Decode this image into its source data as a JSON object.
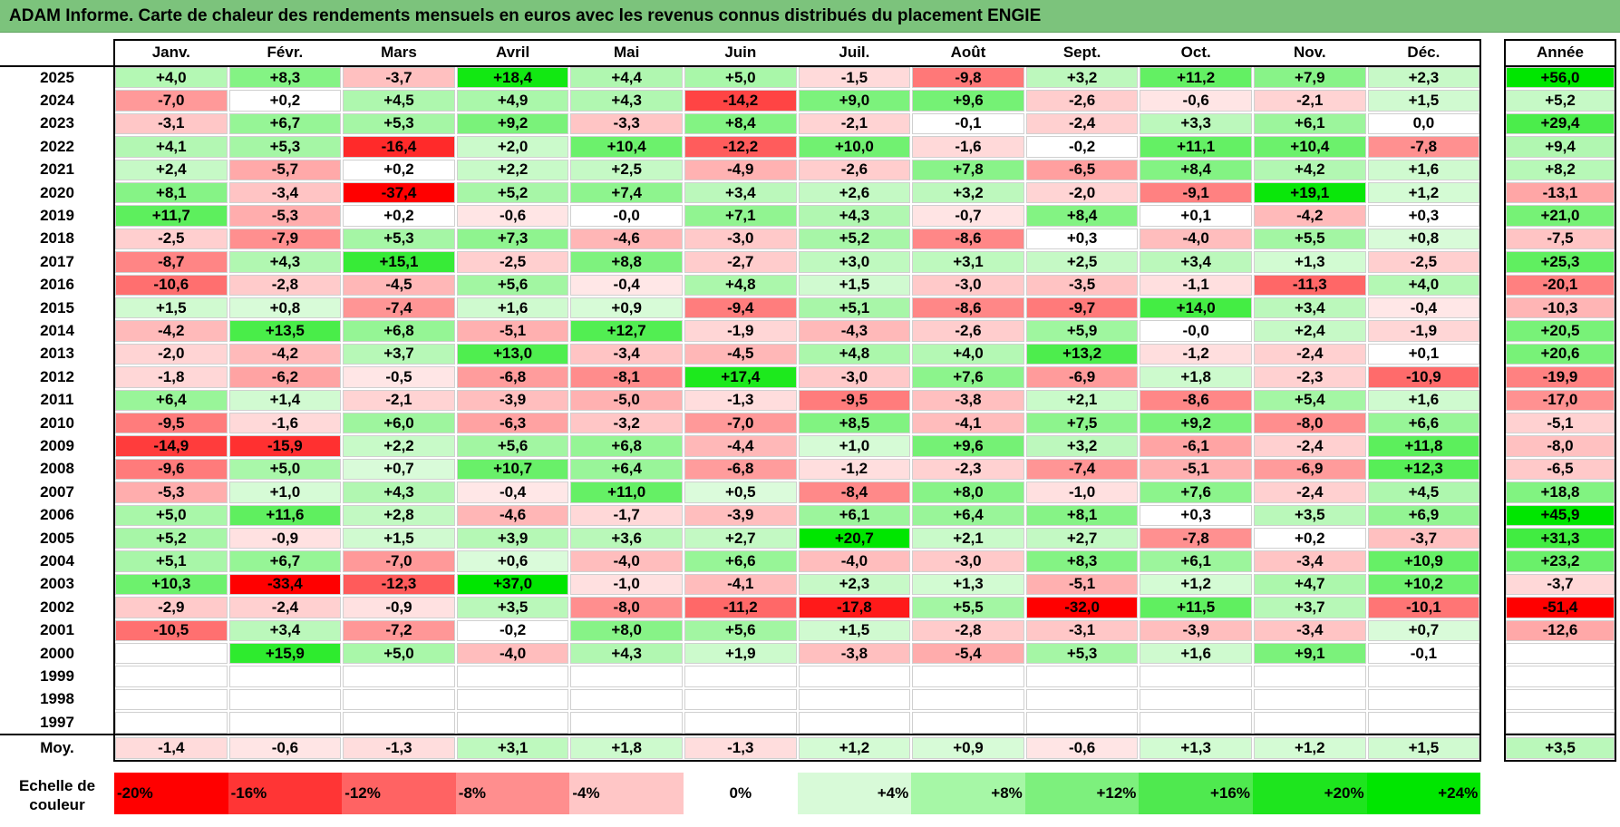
{
  "title": "ADAM Informe. Carte de chaleur des rendements mensuels en euros avec les revenus connus distribués du placement ENGIE",
  "colors": {
    "title_bg": "#7cc37c",
    "positive_max": "#00e600",
    "negative_max": "#ff0000",
    "zero": "#ffffff"
  },
  "chart_data": {
    "type": "heatmap",
    "title": "ADAM Informe. Carte de chaleur des rendements mensuels en euros avec les revenus connus distribués du placement ENGIE",
    "columns": [
      "Janv.",
      "Févr.",
      "Mars",
      "Avril",
      "Mai",
      "Juin",
      "Juil.",
      "Août",
      "Sept.",
      "Oct.",
      "Nov.",
      "Déc."
    ],
    "year_column_label": "Année",
    "rows": [
      {
        "year": "2025",
        "months": [
          "+4,0",
          "+8,3",
          "-3,7",
          "+18,4",
          "+4,4",
          "+5,0",
          "-1,5",
          "-9,8",
          "+3,2",
          "+11,2",
          "+7,9",
          "+2,3"
        ],
        "year_value": "+56,0"
      },
      {
        "year": "2024",
        "months": [
          "-7,0",
          "+0,2",
          "+4,5",
          "+4,9",
          "+4,3",
          "-14,2",
          "+9,0",
          "+9,6",
          "-2,6",
          "-0,6",
          "-2,1",
          "+1,5"
        ],
        "year_value": "+5,2"
      },
      {
        "year": "2023",
        "months": [
          "-3,1",
          "+6,7",
          "+5,3",
          "+9,2",
          "-3,3",
          "+8,4",
          "-2,1",
          "-0,1",
          "-2,4",
          "+3,3",
          "+6,1",
          "0,0"
        ],
        "year_value": "+29,4"
      },
      {
        "year": "2022",
        "months": [
          "+4,1",
          "+5,3",
          "-16,4",
          "+2,0",
          "+10,4",
          "-12,2",
          "+10,0",
          "-1,6",
          "-0,2",
          "+11,1",
          "+10,4",
          "-7,8"
        ],
        "year_value": "+9,4"
      },
      {
        "year": "2021",
        "months": [
          "+2,4",
          "-5,7",
          "+0,2",
          "+2,2",
          "+2,5",
          "-4,9",
          "-2,6",
          "+7,8",
          "-6,5",
          "+8,4",
          "+4,2",
          "+1,6"
        ],
        "year_value": "+8,2"
      },
      {
        "year": "2020",
        "months": [
          "+8,1",
          "-3,4",
          "-37,4",
          "+5,2",
          "+7,4",
          "+3,4",
          "+2,6",
          "+3,2",
          "-2,0",
          "-9,1",
          "+19,1",
          "+1,2"
        ],
        "year_value": "-13,1"
      },
      {
        "year": "2019",
        "months": [
          "+11,7",
          "-5,3",
          "+0,2",
          "-0,6",
          "-0,0",
          "+7,1",
          "+4,3",
          "-0,7",
          "+8,4",
          "+0,1",
          "-4,2",
          "+0,3"
        ],
        "year_value": "+21,0"
      },
      {
        "year": "2018",
        "months": [
          "-2,5",
          "-7,9",
          "+5,3",
          "+7,3",
          "-4,6",
          "-3,0",
          "+5,2",
          "-8,6",
          "+0,3",
          "-4,0",
          "+5,5",
          "+0,8"
        ],
        "year_value": "-7,5"
      },
      {
        "year": "2017",
        "months": [
          "-8,7",
          "+4,3",
          "+15,1",
          "-2,5",
          "+8,8",
          "-2,7",
          "+3,0",
          "+3,1",
          "+2,5",
          "+3,4",
          "+1,3",
          "-2,5"
        ],
        "year_value": "+25,3"
      },
      {
        "year": "2016",
        "months": [
          "-10,6",
          "-2,8",
          "-4,5",
          "+5,6",
          "-0,4",
          "+4,8",
          "+1,5",
          "-3,0",
          "-3,5",
          "-1,1",
          "-11,3",
          "+4,0"
        ],
        "year_value": "-20,1"
      },
      {
        "year": "2015",
        "months": [
          "+1,5",
          "+0,8",
          "-7,4",
          "+1,6",
          "+0,9",
          "-9,4",
          "+5,1",
          "-8,6",
          "-9,7",
          "+14,0",
          "+3,4",
          "-0,4"
        ],
        "year_value": "-10,3"
      },
      {
        "year": "2014",
        "months": [
          "-4,2",
          "+13,5",
          "+6,8",
          "-5,1",
          "+12,7",
          "-1,9",
          "-4,3",
          "-2,6",
          "+5,9",
          "-0,0",
          "+2,4",
          "-1,9"
        ],
        "year_value": "+20,5"
      },
      {
        "year": "2013",
        "months": [
          "-2,0",
          "-4,2",
          "+3,7",
          "+13,0",
          "-3,4",
          "-4,5",
          "+4,8",
          "+4,0",
          "+13,2",
          "-1,2",
          "-2,4",
          "+0,1"
        ],
        "year_value": "+20,6"
      },
      {
        "year": "2012",
        "months": [
          "-1,8",
          "-6,2",
          "-0,5",
          "-6,8",
          "-8,1",
          "+17,4",
          "-3,0",
          "+7,6",
          "-6,9",
          "+1,8",
          "-2,3",
          "-10,9"
        ],
        "year_value": "-19,9"
      },
      {
        "year": "2011",
        "months": [
          "+6,4",
          "+1,4",
          "-2,1",
          "-3,9",
          "-5,0",
          "-1,3",
          "-9,5",
          "-3,8",
          "+2,1",
          "-8,6",
          "+5,4",
          "+1,6"
        ],
        "year_value": "-17,0"
      },
      {
        "year": "2010",
        "months": [
          "-9,5",
          "-1,6",
          "+6,0",
          "-6,3",
          "-3,2",
          "-7,0",
          "+8,5",
          "-4,1",
          "+7,5",
          "+9,2",
          "-8,0",
          "+6,6"
        ],
        "year_value": "-5,1"
      },
      {
        "year": "2009",
        "months": [
          "-14,9",
          "-15,9",
          "+2,2",
          "+5,6",
          "+6,8",
          "-4,4",
          "+1,0",
          "+9,6",
          "+3,2",
          "-6,1",
          "-2,4",
          "+11,8"
        ],
        "year_value": "-8,0"
      },
      {
        "year": "2008",
        "months": [
          "-9,6",
          "+5,0",
          "+0,7",
          "+10,7",
          "+6,4",
          "-6,8",
          "-1,2",
          "-2,3",
          "-7,4",
          "-5,1",
          "-6,9",
          "+12,3"
        ],
        "year_value": "-6,5"
      },
      {
        "year": "2007",
        "months": [
          "-5,3",
          "+1,0",
          "+4,3",
          "-0,4",
          "+11,0",
          "+0,5",
          "-8,4",
          "+8,0",
          "-1,0",
          "+7,6",
          "-2,4",
          "+4,5"
        ],
        "year_value": "+18,8"
      },
      {
        "year": "2006",
        "months": [
          "+5,0",
          "+11,6",
          "+2,8",
          "-4,6",
          "-1,7",
          "-3,9",
          "+6,1",
          "+6,4",
          "+8,1",
          "+0,3",
          "+3,5",
          "+6,9"
        ],
        "year_value": "+45,9"
      },
      {
        "year": "2005",
        "months": [
          "+5,2",
          "-0,9",
          "+1,5",
          "+3,9",
          "+3,6",
          "+2,7",
          "+20,7",
          "+2,1",
          "+2,7",
          "-7,8",
          "+0,2",
          "-3,7"
        ],
        "year_value": "+31,3"
      },
      {
        "year": "2004",
        "months": [
          "+5,1",
          "+6,7",
          "-7,0",
          "+0,6",
          "-4,0",
          "+6,6",
          "-4,0",
          "-3,0",
          "+8,3",
          "+6,1",
          "-3,4",
          "+10,9"
        ],
        "year_value": "+23,2"
      },
      {
        "year": "2003",
        "months": [
          "+10,3",
          "-33,4",
          "-12,3",
          "+37,0",
          "-1,0",
          "-4,1",
          "+2,3",
          "+1,3",
          "-5,1",
          "+1,2",
          "+4,7",
          "+10,2"
        ],
        "year_value": "-3,7"
      },
      {
        "year": "2002",
        "months": [
          "-2,9",
          "-2,4",
          "-0,9",
          "+3,5",
          "-8,0",
          "-11,2",
          "-17,8",
          "+5,5",
          "-32,0",
          "+11,5",
          "+3,7",
          "-10,1"
        ],
        "year_value": "-51,4"
      },
      {
        "year": "2001",
        "months": [
          "-10,5",
          "+3,4",
          "-7,2",
          "-0,2",
          "+8,0",
          "+5,6",
          "+1,5",
          "-2,8",
          "-3,1",
          "-3,9",
          "-3,4",
          "+0,7"
        ],
        "year_value": "-12,6"
      },
      {
        "year": "2000",
        "months": [
          "",
          "+15,9",
          "+5,0",
          "-4,0",
          "+4,3",
          "+1,9",
          "-3,8",
          "-5,4",
          "+5,3",
          "+1,6",
          "+9,1",
          "-0,1"
        ],
        "year_value": ""
      },
      {
        "year": "1999",
        "months": [
          "",
          "",
          "",
          "",
          "",
          "",
          "",
          "",
          "",
          "",
          "",
          ""
        ],
        "year_value": ""
      },
      {
        "year": "1998",
        "months": [
          "",
          "",
          "",
          "",
          "",
          "",
          "",
          "",
          "",
          "",
          "",
          ""
        ],
        "year_value": ""
      },
      {
        "year": "1997",
        "months": [
          "",
          "",
          "",
          "",
          "",
          "",
          "",
          "",
          "",
          "",
          "",
          ""
        ],
        "year_value": ""
      }
    ],
    "average_row": {
      "label": "Moy.",
      "months": [
        "-1,4",
        "-0,6",
        "-1,3",
        "+3,1",
        "+1,8",
        "-1,3",
        "+1,2",
        "+0,9",
        "-0,6",
        "+1,3",
        "+1,2",
        "+1,5"
      ],
      "year_value": "+3,5"
    },
    "color_scale": {
      "label_line1": "Echelle de",
      "label_line2": "couleur",
      "steps": [
        "-20%",
        "-16%",
        "-12%",
        "-8%",
        "-4%",
        "0%",
        "+4%",
        "+8%",
        "+12%",
        "+16%",
        "+20%",
        "+24%"
      ],
      "step_colors": [
        "#ff0000",
        "#ff3535",
        "#ff6363",
        "#ff8e8e",
        "#ffc6c6",
        "#ffffff",
        "#d8fad8",
        "#a6f7a6",
        "#7df07d",
        "#4fe94f",
        "#1ee51e",
        "#00e600"
      ]
    }
  }
}
